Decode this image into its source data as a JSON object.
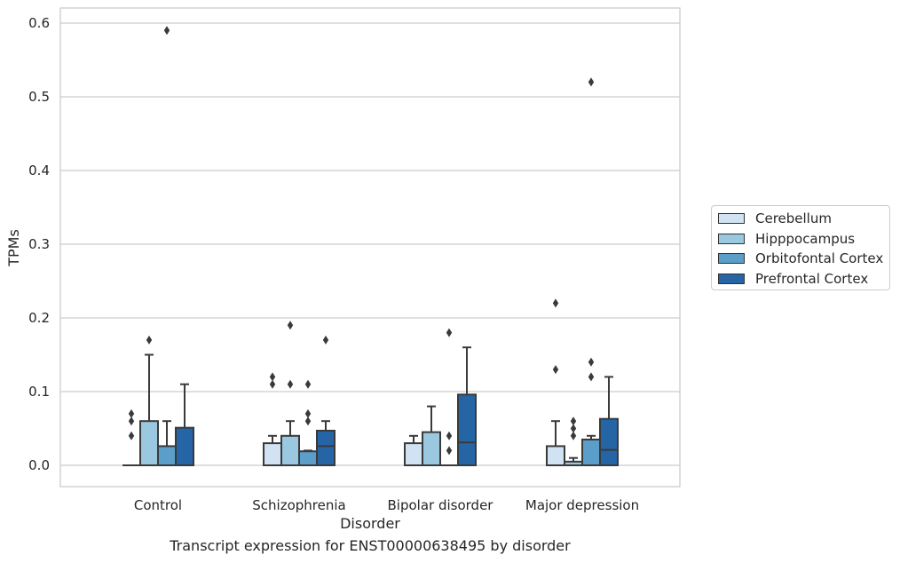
{
  "chart_data": {
    "type": "box",
    "title": "Transcript expression for ENST00000638495 by disorder",
    "xlabel": "Disorder",
    "ylabel": "TPMs",
    "ylim": [
      -0.028,
      0.62
    ],
    "yticks": [
      0.0,
      0.1,
      0.2,
      0.3,
      0.4,
      0.5,
      0.6
    ],
    "ytick_labels": [
      "0.0",
      "0.1",
      "0.2",
      "0.3",
      "0.4",
      "0.5",
      "0.6"
    ],
    "grid": "horizontal",
    "legend_position": "right",
    "categories": [
      "Control",
      "Schizophrenia",
      "Bipolar disorder",
      "Major depression"
    ],
    "series": [
      {
        "name": "Cerebellum",
        "color": "#d1e2f2",
        "boxes": [
          {
            "q1": 0.0,
            "median": 0.0,
            "q3": 0.0,
            "whisker_low": 0.0,
            "whisker_high": 0.0,
            "outliers": [
              0.04,
              0.06,
              0.07
            ]
          },
          {
            "q1": 0.0,
            "median": 0.0,
            "q3": 0.03,
            "whisker_low": 0.0,
            "whisker_high": 0.04,
            "outliers": [
              0.11,
              0.12
            ]
          },
          {
            "q1": 0.0,
            "median": 0.0,
            "q3": 0.03,
            "whisker_low": 0.0,
            "whisker_high": 0.04,
            "outliers": []
          },
          {
            "q1": 0.0,
            "median": 0.0,
            "q3": 0.026,
            "whisker_low": 0.0,
            "whisker_high": 0.06,
            "outliers": [
              0.13,
              0.22
            ]
          }
        ]
      },
      {
        "name": "Hipppocampus",
        "color": "#9ac8e0",
        "boxes": [
          {
            "q1": 0.0,
            "median": 0.0,
            "q3": 0.06,
            "whisker_low": 0.0,
            "whisker_high": 0.15,
            "outliers": [
              0.17
            ]
          },
          {
            "q1": 0.0,
            "median": 0.0,
            "q3": 0.04,
            "whisker_low": 0.0,
            "whisker_high": 0.06,
            "outliers": [
              0.11,
              0.19
            ]
          },
          {
            "q1": 0.0,
            "median": 0.0,
            "q3": 0.045,
            "whisker_low": 0.0,
            "whisker_high": 0.08,
            "outliers": []
          },
          {
            "q1": 0.0,
            "median": 0.0,
            "q3": 0.005,
            "whisker_low": 0.0,
            "whisker_high": 0.01,
            "outliers": [
              0.04,
              0.05,
              0.06
            ]
          }
        ]
      },
      {
        "name": "Orbitofontal Cortex",
        "color": "#5a9ec9",
        "boxes": [
          {
            "q1": 0.0,
            "median": 0.0,
            "q3": 0.026,
            "whisker_low": 0.0,
            "whisker_high": 0.06,
            "outliers": [
              0.59
            ]
          },
          {
            "q1": 0.0,
            "median": 0.0,
            "q3": 0.019,
            "whisker_low": 0.0,
            "whisker_high": 0.02,
            "outliers": [
              0.06,
              0.07,
              0.11
            ]
          },
          {
            "q1": 0.0,
            "median": 0.0,
            "q3": 0.0,
            "whisker_low": 0.0,
            "whisker_high": 0.0,
            "outliers": [
              0.02,
              0.04,
              0.18
            ]
          },
          {
            "q1": 0.0,
            "median": 0.0,
            "q3": 0.035,
            "whisker_low": 0.0,
            "whisker_high": 0.04,
            "outliers": [
              0.12,
              0.14,
              0.52
            ]
          }
        ]
      },
      {
        "name": "Prefrontal Cortex",
        "color": "#2565a6",
        "boxes": [
          {
            "q1": 0.0,
            "median": 0.0,
            "q3": 0.051,
            "whisker_low": 0.0,
            "whisker_high": 0.11,
            "outliers": []
          },
          {
            "q1": 0.0,
            "median": 0.026,
            "q3": 0.047,
            "whisker_low": 0.0,
            "whisker_high": 0.06,
            "outliers": [
              0.17
            ]
          },
          {
            "q1": 0.0,
            "median": 0.031,
            "q3": 0.096,
            "whisker_low": 0.0,
            "whisker_high": 0.16,
            "outliers": []
          },
          {
            "q1": 0.0,
            "median": 0.021,
            "q3": 0.063,
            "whisker_low": 0.0,
            "whisker_high": 0.12,
            "outliers": []
          }
        ]
      }
    ]
  }
}
